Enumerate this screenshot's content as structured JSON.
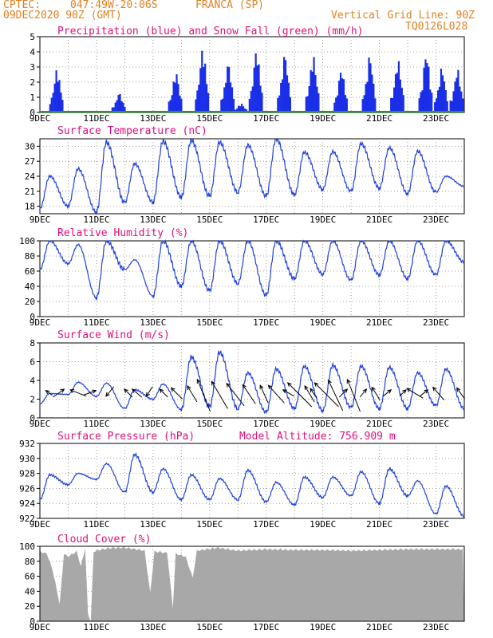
{
  "header": {
    "source": "CPTEC:",
    "coords": "047:49W-20:06S",
    "station": "FRANCA (SP)",
    "date": "09DEC2020 90Z (GMT)",
    "grid_line": "Vertical Grid Line: 90Z",
    "run_code": "TQ0126L028"
  },
  "colors": {
    "header": "#e08020",
    "title": "#e0107a",
    "precip": "#1a2ee8",
    "snow": "#1ea01e",
    "line": "#2040dd",
    "cloud": "#a8a8a8",
    "arrow": "#000000",
    "grid": "#888888"
  },
  "x_axis": {
    "tick_labels": [
      "9DEC",
      "11DEC",
      "13DEC",
      "15DEC",
      "17DEC",
      "19DEC",
      "21DEC",
      "23DEC"
    ],
    "tick_days": [
      0,
      2,
      4,
      6,
      8,
      10,
      12,
      14
    ],
    "range_days": [
      0,
      15
    ]
  },
  "chart_data": [
    {
      "type": "bar",
      "title": "Precipitation (blue) and Snow Fall (green) (mm/h)",
      "ylim": [
        0,
        5
      ],
      "yticks": [
        "0",
        "1",
        "2",
        "3",
        "4",
        "5"
      ],
      "yvals": [
        0,
        1,
        2,
        3,
        4,
        5
      ],
      "series": [
        {
          "events": [
            {
              "x": 0.55,
              "peak": 2.9
            },
            {
              "x": 2.75,
              "peak": 1.3
            },
            {
              "x": 4.75,
              "peak": 2.7
            },
            {
              "x": 5.7,
              "peak": 4.3
            },
            {
              "x": 6.6,
              "peak": 3.3
            },
            {
              "x": 7.05,
              "peak": 0.6
            },
            {
              "x": 7.6,
              "peak": 4.2
            },
            {
              "x": 8.6,
              "peak": 3.9
            },
            {
              "x": 9.6,
              "peak": 3.8
            },
            {
              "x": 10.6,
              "peak": 2.9
            },
            {
              "x": 11.6,
              "peak": 3.8
            },
            {
              "x": 12.6,
              "peak": 3.5
            },
            {
              "x": 13.6,
              "peak": 4.0
            },
            {
              "x": 14.15,
              "peak": 3.0
            },
            {
              "x": 14.7,
              "peak": 2.9
            }
          ]
        }
      ],
      "snow": 0
    },
    {
      "type": "line",
      "title": "Surface Temperature (nC)",
      "ylim": [
        16.5,
        31.5
      ],
      "yticks": [
        "18",
        "21",
        "24",
        "27",
        "30"
      ],
      "yvals": [
        18,
        21,
        24,
        27,
        30
      ],
      "min": [
        17.5,
        18.0,
        16.8,
        18.7,
        18.8,
        19.8,
        20.0,
        20.8,
        20.0,
        20.3,
        21.4,
        21.0,
        21.6,
        20.5,
        20.8,
        22.0
      ],
      "max": [
        24.0,
        25.5,
        30.8,
        26.5,
        31.0,
        31.2,
        30.8,
        30.2,
        31.5,
        28.8,
        28.9,
        30.5,
        29.7,
        29.0,
        24.0,
        23.8
      ]
    },
    {
      "type": "line",
      "title": "Relative Humidity (%)",
      "ylim": [
        0,
        100
      ],
      "yticks": [
        "0",
        "20",
        "40",
        "60",
        "80",
        "100"
      ],
      "yvals": [
        0,
        20,
        40,
        60,
        80,
        100
      ],
      "min": [
        62,
        70,
        25,
        62,
        27,
        40,
        34,
        44,
        28,
        50,
        56,
        48,
        55,
        50,
        55,
        72
      ],
      "max": [
        100,
        95,
        100,
        75,
        100,
        100,
        100,
        100,
        100,
        100,
        100,
        100,
        100,
        100,
        100,
        100
      ]
    },
    {
      "type": "line",
      "title": "Surface Wind (m/s)",
      "ylim": [
        0,
        8
      ],
      "yticks": [
        "0",
        "2",
        "4",
        "6",
        "8"
      ],
      "yvals": [
        0,
        2,
        4,
        6,
        8
      ],
      "min": [
        1.5,
        2.5,
        2.3,
        1.0,
        2.0,
        0.9,
        1.2,
        1.0,
        0.6,
        1.0,
        0.8,
        1.1,
        1.0,
        1.0,
        1.3,
        1.0
      ],
      "max": [
        2.6,
        3.8,
        3.7,
        3.0,
        3.6,
        6.5,
        7.0,
        4.8,
        5.2,
        5.5,
        5.6,
        5.5,
        5.4,
        4.8,
        5.2,
        3.0
      ],
      "arrows": [
        {
          "x": 0.3,
          "dx": 8,
          "dy": -6
        },
        {
          "x": 0.7,
          "dx": -14,
          "dy": -10
        },
        {
          "x": 1.3,
          "dx": 20,
          "dy": -8
        },
        {
          "x": 1.8,
          "dx": -16,
          "dy": -6
        },
        {
          "x": 2.45,
          "dx": 10,
          "dy": 12
        },
        {
          "x": 3.1,
          "dx": 10,
          "dy": -10
        },
        {
          "x": 3.4,
          "dx": 12,
          "dy": -10
        },
        {
          "x": 3.85,
          "dx": 8,
          "dy": 12
        },
        {
          "x": 4.35,
          "dx": 10,
          "dy": -10
        },
        {
          "x": 4.8,
          "dx": 14,
          "dy": -14
        },
        {
          "x": 5.35,
          "dx": 12,
          "dy": -20
        },
        {
          "x": 5.75,
          "dx": 16,
          "dy": -40
        },
        {
          "x": 6.3,
          "dx": 20,
          "dy": -34
        },
        {
          "x": 6.85,
          "dx": 22,
          "dy": -28
        },
        {
          "x": 7.35,
          "dx": 16,
          "dy": -24
        },
        {
          "x": 7.9,
          "dx": 10,
          "dy": -22
        },
        {
          "x": 8.3,
          "dx": 20,
          "dy": -22
        },
        {
          "x": 8.75,
          "dx": 14,
          "dy": -8
        },
        {
          "x": 9.1,
          "dx": 30,
          "dy": -30
        },
        {
          "x": 9.5,
          "dx": 12,
          "dy": -20
        },
        {
          "x": 9.65,
          "dx": 8,
          "dy": -12
        },
        {
          "x": 10.05,
          "dx": 30,
          "dy": -30
        },
        {
          "x": 10.4,
          "dx": 18,
          "dy": -38
        },
        {
          "x": 10.75,
          "dx": -10,
          "dy": -10
        },
        {
          "x": 11.05,
          "dx": 16,
          "dy": -40
        },
        {
          "x": 11.45,
          "dx": -8,
          "dy": -10
        },
        {
          "x": 11.85,
          "dx": 10,
          "dy": -16
        },
        {
          "x": 12.3,
          "dx": -10,
          "dy": -8
        },
        {
          "x": 12.85,
          "dx": -8,
          "dy": -8
        },
        {
          "x": 13.2,
          "dx": 20,
          "dy": -12
        },
        {
          "x": 13.6,
          "dx": -10,
          "dy": -8
        },
        {
          "x": 14.05,
          "dx": 14,
          "dy": -16
        },
        {
          "x": 14.85,
          "dx": 10,
          "dy": -14
        }
      ]
    },
    {
      "type": "line",
      "title": "Surface Pressure (hPa)",
      "annotation": "Model Altitude: 756.909 m",
      "ylim": [
        922,
        932
      ],
      "yticks": [
        "922",
        "924",
        "926",
        "928",
        "930",
        "932"
      ],
      "yvals": [
        922,
        924,
        926,
        928,
        930,
        932
      ],
      "min": [
        924.5,
        926.5,
        927.2,
        925.5,
        925.5,
        924.5,
        924.5,
        924.5,
        924.2,
        923.8,
        924.8,
        925.0,
        924.0,
        925.0,
        922.6,
        922.3
      ],
      "max": [
        927.8,
        928.0,
        929.3,
        930.5,
        928.6,
        927.8,
        927.3,
        928.4,
        926.8,
        927.5,
        927.5,
        928.2,
        928.6,
        927.0,
        926.3,
        924.0
      ]
    },
    {
      "type": "area",
      "title": "Cloud Cover (%)",
      "ylim": [
        0,
        100
      ],
      "yticks": [
        "0",
        "20",
        "40",
        "60",
        "80",
        "100"
      ],
      "yvals": [
        0,
        20,
        40,
        60,
        80,
        100
      ],
      "cover": [
        [
          0,
          95
        ],
        [
          0.25,
          92
        ],
        [
          0.45,
          70
        ],
        [
          0.7,
          25
        ],
        [
          0.85,
          92
        ],
        [
          1.0,
          88
        ],
        [
          1.3,
          95
        ],
        [
          1.45,
          75
        ],
        [
          1.6,
          100
        ],
        [
          1.7,
          12
        ],
        [
          1.8,
          2
        ],
        [
          1.9,
          95
        ],
        [
          2.2,
          98
        ],
        [
          2.6,
          100
        ],
        [
          3.0,
          100
        ],
        [
          3.4,
          98
        ],
        [
          3.7,
          96
        ],
        [
          3.9,
          40
        ],
        [
          4.05,
          95
        ],
        [
          4.5,
          93
        ],
        [
          4.7,
          20
        ],
        [
          4.8,
          92
        ],
        [
          5.15,
          88
        ],
        [
          5.4,
          60
        ],
        [
          5.55,
          96
        ],
        [
          5.9,
          98
        ],
        [
          6.3,
          100
        ],
        [
          7.0,
          96
        ],
        [
          8.0,
          98
        ],
        [
          9.0,
          97
        ],
        [
          10.0,
          97
        ],
        [
          11.0,
          96
        ],
        [
          12.0,
          97
        ],
        [
          13.0,
          98
        ],
        [
          14.0,
          98
        ],
        [
          15.0,
          98
        ]
      ]
    }
  ]
}
